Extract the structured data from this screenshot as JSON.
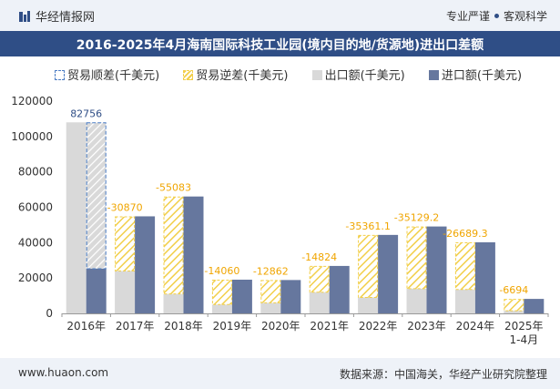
{
  "header": {
    "brand": "华经情报网",
    "tagline_left": "专业严谨",
    "tagline_right": "客观科学"
  },
  "footer": {
    "website": "www.huaon.com",
    "source": "数据来源：中国海关，华经产业研究院整理"
  },
  "colors": {
    "header_band": "#2f4e86",
    "import_bar": "#66779e",
    "export_bar": "#d9d9d9",
    "surplus_hatch": "#f2cf4a",
    "deficit_outline": "#4a7cc4"
  },
  "chart_data": {
    "type": "bar",
    "title": "2016-2025年4月海南国际科技工业园(境内目的地/货源地)进出口差额",
    "legend_position": "top",
    "categories": [
      "2016年",
      "2017年",
      "2018年",
      "2019年",
      "2020年",
      "2021年",
      "2022年",
      "2023年",
      "2024年",
      "2025年\n1-4月"
    ],
    "ylim": [
      0,
      120000
    ],
    "yticks": [
      0,
      20000,
      40000,
      60000,
      80000,
      100000,
      120000
    ],
    "series": [
      {
        "name": "出口额(千美元)",
        "values": [
          108000,
          24000,
          11000,
          5000,
          6000,
          12000,
          9000,
          14000,
          13500,
          1500
        ]
      },
      {
        "name": "进口额(千美元)",
        "values": [
          25244,
          54870,
          66083,
          19060,
          18862,
          26824,
          44361.1,
          49129.2,
          40189.3,
          8194
        ]
      }
    ],
    "balance": {
      "surplus_name": "贸易顺差(千美元)",
      "deficit_name": "贸易逆差(千美元)",
      "values": [
        82756,
        -30870,
        -55083,
        -14060,
        -12862,
        -14824,
        -35361.1,
        -35129.2,
        -26689.3,
        -6694
      ],
      "labels": [
        "82756",
        "-30870",
        "-55083",
        "-14060",
        "-12862",
        "-14824",
        "-35361.1",
        "-35129.2",
        "-26689.3",
        "-6694"
      ]
    }
  }
}
